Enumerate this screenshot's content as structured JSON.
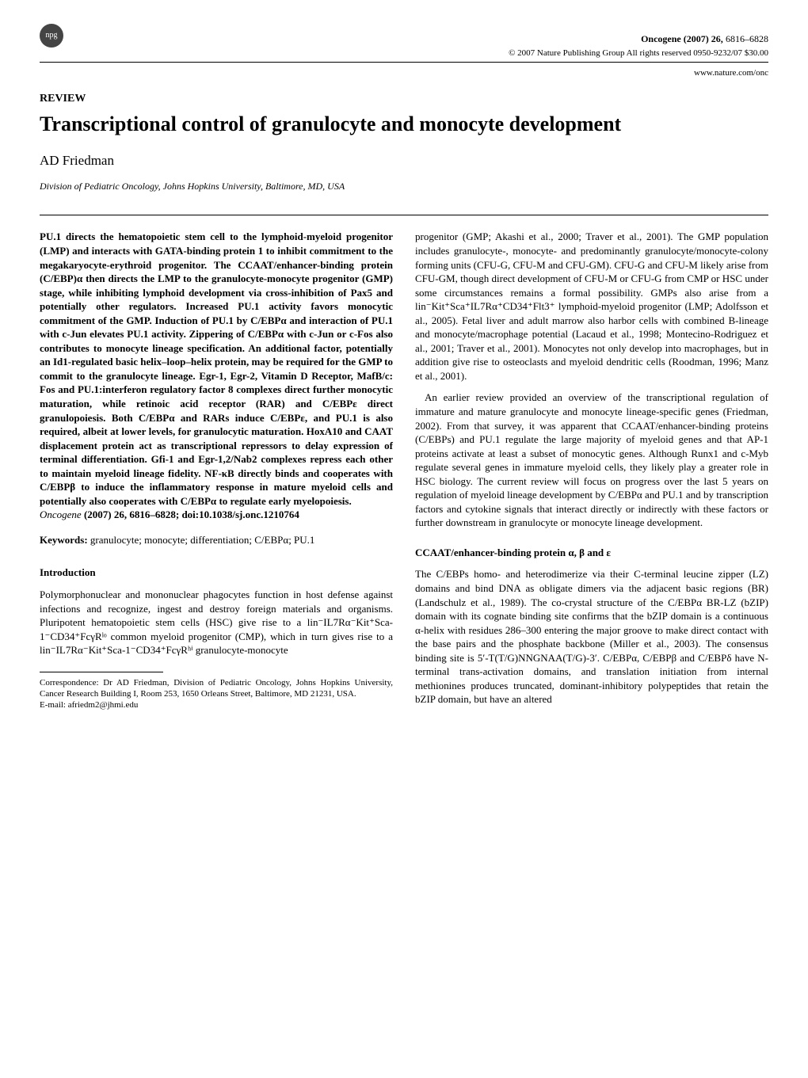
{
  "header": {
    "logo_text": "npg",
    "journal": "Oncogene (2007) 26,",
    "pages": "6816–6828",
    "copyright": "© 2007 Nature Publishing Group   All rights reserved 0950-9232/07 $30.00",
    "www": "www.nature.com/onc"
  },
  "article": {
    "review_label": "REVIEW",
    "title": "Transcriptional control of granulocyte and monocyte development",
    "author": "AD Friedman",
    "affiliation": "Division of Pediatric Oncology, Johns Hopkins University, Baltimore, MD, USA"
  },
  "abstract": {
    "text": "PU.1 directs the hematopoietic stem cell to the lymphoid-myeloid progenitor (LMP) and interacts with GATA-binding protein 1 to inhibit commitment to the megakaryocyte-erythroid progenitor. The CCAAT/enhancer-binding protein (C/EBP)α then directs the LMP to the granulocyte-monocyte progenitor (GMP) stage, while inhibiting lymphoid development via cross-inhibition of Pax5 and potentially other regulators. Increased PU.1 activity favors monocytic commitment of the GMP. Induction of PU.1 by C/EBPα and interaction of PU.1 with c-Jun elevates PU.1 activity. Zippering of C/EBPα with c-Jun or c-Fos also contributes to monocyte lineage specification. An additional factor, potentially an Id1-regulated basic helix–loop–helix protein, may be required for the GMP to commit to the granulocyte lineage. Egr-1, Egr-2, Vitamin D Receptor, MafB/c: Fos and PU.1:interferon regulatory factor 8 complexes direct further monocytic maturation, while retinoic acid receptor (RAR) and C/EBPε direct granulopoiesis. Both C/EBPα and RARs induce C/EBPε, and PU.1 is also required, albeit at lower levels, for granulocytic maturation. HoxA10 and CAAT displacement protein act as transcriptional repressors to delay expression of terminal differentiation. Gfi-1 and Egr-1,2/Nab2 complexes repress each other to maintain myeloid lineage fidelity. NF-κB directly binds and cooperates with C/EBPβ to induce the inflammatory response in mature myeloid cells and potentially also cooperates with C/EBPα to regulate early myelopoiesis.",
    "citation_journal": "Oncogene",
    "citation_rest": " (2007) 26, 6816–6828; doi:10.1038/sj.onc.1210764"
  },
  "keywords": {
    "label": "Keywords:",
    "text": " granulocyte; monocyte; differentiation; C/EBPα; PU.1"
  },
  "left": {
    "intro_heading": "Introduction",
    "intro_p1": "Polymorphonuclear and mononuclear phagocytes function in host defense against infections and recognize, ingest and destroy foreign materials and organisms. Pluripotent hematopoietic stem cells (HSC) give rise to a lin⁻IL7Rα⁻Kit⁺Sca-1⁻CD34⁺FcγRˡᵒ common myeloid progenitor (CMP), which in turn gives rise to a lin⁻IL7Rα⁻Kit⁺Sca-1⁻CD34⁺FcγRʰⁱ granulocyte-monocyte"
  },
  "right": {
    "p1": "progenitor (GMP; Akashi et al., 2000; Traver et al., 2001). The GMP population includes granulocyte-, monocyte- and predominantly granulocyte/monocyte-colony forming units (CFU-G, CFU-M and CFU-GM). CFU-G and CFU-M likely arise from CFU-GM, though direct development of CFU-M or CFU-G from CMP or HSC under some circumstances remains a formal possibility. GMPs also arise from a lin⁻Kit⁺Sca⁺IL7Rα⁺CD34⁺Flt3⁺ lymphoid-myeloid progenitor (LMP; Adolfsson et al., 2005). Fetal liver and adult marrow also harbor cells with combined B-lineage and monocyte/macrophage potential (Lacaud et al., 1998; Montecino-Rodriguez et al., 2001; Traver et al., 2001). Monocytes not only develop into macrophages, but in addition give rise to osteoclasts and myeloid dendritic cells (Roodman, 1996; Manz et al., 2001).",
    "p2": "An earlier review provided an overview of the transcriptional regulation of immature and mature granulocyte and monocyte lineage-specific genes (Friedman, 2002). From that survey, it was apparent that CCAAT/enhancer-binding proteins (C/EBPs) and PU.1 regulate the large majority of myeloid genes and that AP-1 proteins activate at least a subset of monocytic genes. Although Runx1 and c-Myb regulate several genes in immature myeloid cells, they likely play a greater role in HSC biology. The current review will focus on progress over the last 5 years on regulation of myeloid lineage development by C/EBPα and PU.1 and by transcription factors and cytokine signals that interact directly or indirectly with these factors or further downstream in granulocyte or monocyte lineage development.",
    "section2_heading": "CCAAT/enhancer-binding protein α, β and ε",
    "p3": "The C/EBPs homo- and heterodimerize via their C-terminal leucine zipper (LZ) domains and bind DNA as obligate dimers via the adjacent basic regions (BR) (Landschulz et al., 1989). The co-crystal structure of the C/EBPα BR-LZ (bZIP) domain with its cognate binding site confirms that the bZIP domain is a continuous α-helix with residues 286–300 entering the major groove to make direct contact with the base pairs and the phosphate backbone (Miller et al., 2003). The consensus binding site is 5′-T(T/G)NNGNAA(T/G)-3′. C/EBPα, C/EBPβ and C/EBPδ have N-terminal trans-activation domains, and translation initiation from internal methionines produces truncated, dominant-inhibitory polypeptides that retain the bZIP domain, but have an altered"
  },
  "footnote": {
    "text": "Correspondence: Dr AD Friedman, Division of Pediatric Oncology, Johns Hopkins University, Cancer Research Building I, Room 253, 1650 Orleans Street, Baltimore, MD 21231, USA.",
    "email": "E-mail: afriedm2@jhmi.edu"
  }
}
